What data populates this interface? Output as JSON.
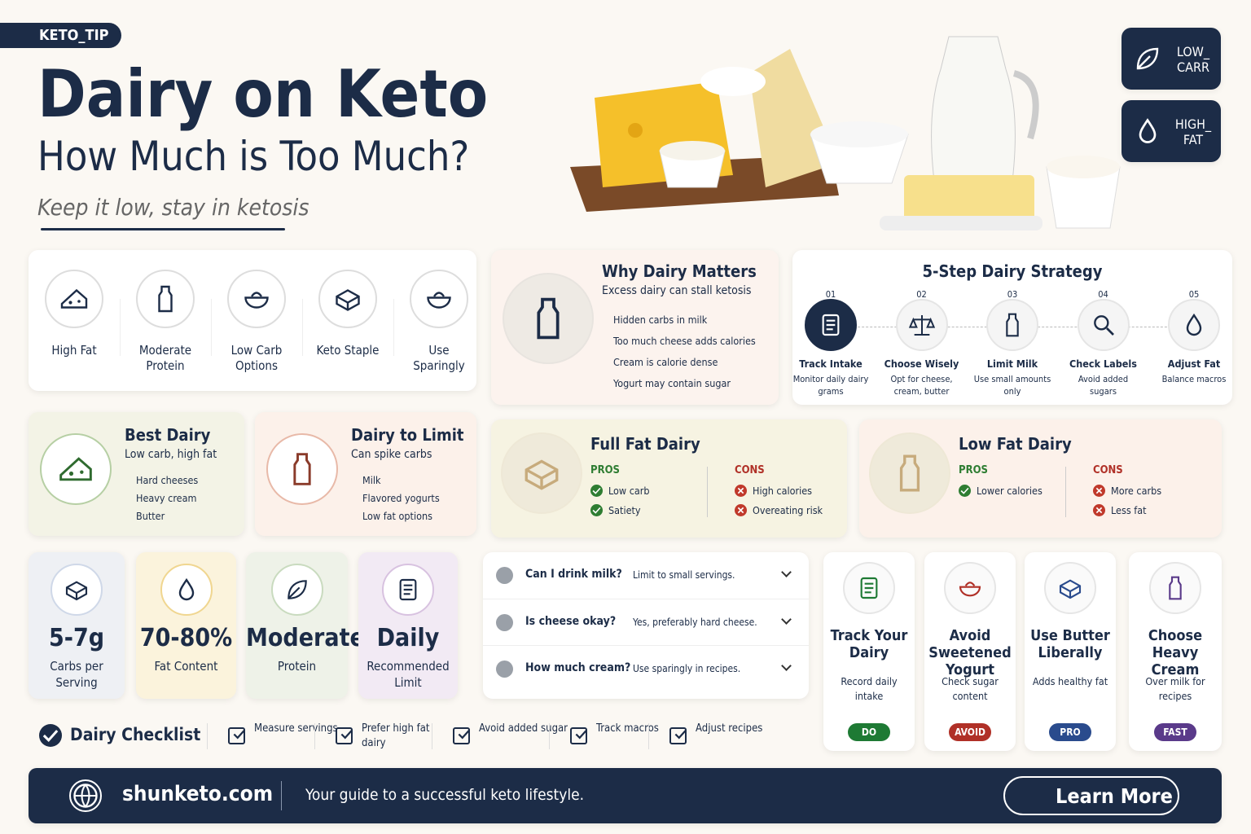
{
  "header": {
    "tag": "KETO_TIP",
    "title": "Dairy on Keto",
    "subtitle": "How Much is Too Much?",
    "tagline": "Keep it low, stay in ketosis"
  },
  "badges": [
    {
      "lines": [
        "LOW_",
        "CARR"
      ]
    },
    {
      "lines": [
        "HIGH_",
        "FAT"
      ]
    }
  ],
  "features": [
    "High Fat",
    "Moderate Protein",
    "Low Carb Options",
    "Keto Staple",
    "Use Sparingly"
  ],
  "why": {
    "title": "Why Dairy Matters",
    "subtitle": "Excess dairy can stall ketosis",
    "bullets": [
      "Hidden carbs in milk",
      "Too much cheese adds calories",
      "Cream is calorie dense",
      "Yogurt may contain sugar"
    ]
  },
  "strategy": {
    "title": "5-Step Dairy Strategy",
    "steps": [
      {
        "num": "01",
        "title": "Track Intake",
        "desc": "Monitor daily dairy grams"
      },
      {
        "num": "02",
        "title": "Choose Wisely",
        "desc": "Opt for cheese, cream, butter"
      },
      {
        "num": "03",
        "title": "Limit Milk",
        "desc": "Use small amounts only"
      },
      {
        "num": "04",
        "title": "Check Labels",
        "desc": "Avoid added sugars"
      },
      {
        "num": "05",
        "title": "Adjust Fat",
        "desc": "Balance macros"
      }
    ]
  },
  "best": {
    "title": "Best Dairy",
    "subtitle": "Low carb, high fat",
    "items": [
      "Hard cheeses",
      "Heavy cream",
      "Butter"
    ]
  },
  "limit": {
    "title": "Dairy to Limit",
    "subtitle": "Can spike carbs",
    "items": [
      "Milk",
      "Flavored yogurts",
      "Low fat options"
    ]
  },
  "full_fat": {
    "title": "Full Fat Dairy",
    "pros_label": "PROS",
    "pros": [
      "Low carb",
      "Satiety"
    ],
    "cons_label": "CONS",
    "cons": [
      "High calories",
      "Overeating risk"
    ]
  },
  "low_fat": {
    "title": "Low Fat Dairy",
    "pros_label": "PROS",
    "pros": [
      "Lower calories"
    ],
    "cons_label": "CONS",
    "cons": [
      "More carbs",
      "Less fat"
    ]
  },
  "stats": [
    {
      "value": "5-7g",
      "label": "Carbs per Serving"
    },
    {
      "value": "70-80%",
      "label": "Fat Content"
    },
    {
      "value": "Moderate",
      "label": "Protein"
    },
    {
      "value": "Daily",
      "label": "Recommended Limit"
    }
  ],
  "faq": [
    {
      "q": "Can I drink milk?",
      "a": "Limit to small servings."
    },
    {
      "q": "Is cheese okay?",
      "a": "Yes, preferably hard cheese."
    },
    {
      "q": "How much cream?",
      "a": "Use sparingly in recipes."
    }
  ],
  "tips": [
    {
      "title": "Track Your Dairy",
      "desc": "Record daily intake",
      "tag": "DO"
    },
    {
      "title": "Avoid Sweetened Yogurt",
      "desc": "Check sugar content",
      "tag": "AVOID"
    },
    {
      "title": "Use Butter Liberally",
      "desc": "Adds healthy fat",
      "tag": "PRO"
    },
    {
      "title": "Choose Heavy Cream",
      "desc": "Over milk for recipes",
      "tag": "FAST"
    }
  ],
  "checklist": {
    "title": "Dairy Checklist",
    "items": [
      "Measure servings",
      "Prefer high fat dairy",
      "Avoid added sugar",
      "Track macros",
      "Adjust recipes"
    ]
  },
  "footer": {
    "site": "shunketo.com",
    "tagline": "Your guide to a successful keto lifestyle.",
    "button": "Learn More"
  }
}
